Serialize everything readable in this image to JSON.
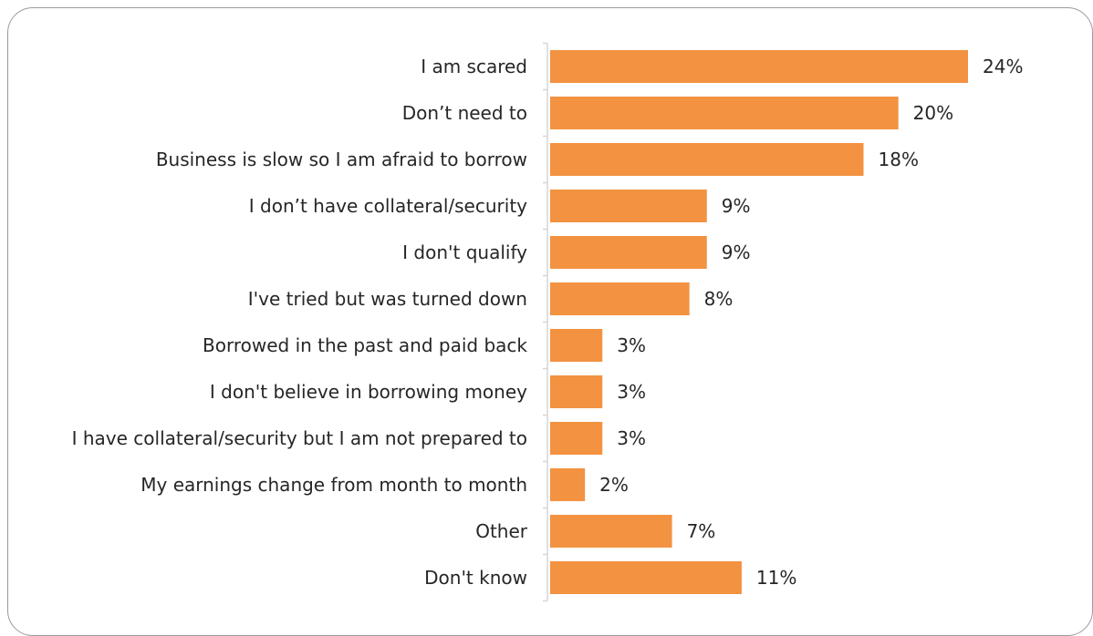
{
  "chart_data": {
    "type": "bar",
    "orientation": "horizontal",
    "categories": [
      "I am scared",
      "Don’t need to",
      "Business is slow so I am afraid to borrow",
      "I don’t have collateral/security",
      "I don't qualify",
      "I've tried but was turned down",
      "Borrowed in the past and paid back",
      "I don't believe in borrowing money",
      "I have collateral/security but I am not prepared to",
      "My earnings change from month to month",
      "Other",
      "Don't know"
    ],
    "values": [
      24,
      20,
      18,
      9,
      9,
      8,
      3,
      3,
      3,
      2,
      7,
      11
    ],
    "value_labels": [
      "24%",
      "20%",
      "18%",
      "9%",
      "9%",
      "8%",
      "3%",
      "3%",
      "3%",
      "2%",
      "7%",
      "11%"
    ],
    "unit": "%",
    "xlim": [
      0,
      24
    ],
    "grid": false,
    "legend": "none",
    "colors": {
      "bar": "#F39241",
      "axis": "#d6d6d6",
      "text": "#262626",
      "border": "#9a9a9a"
    }
  }
}
